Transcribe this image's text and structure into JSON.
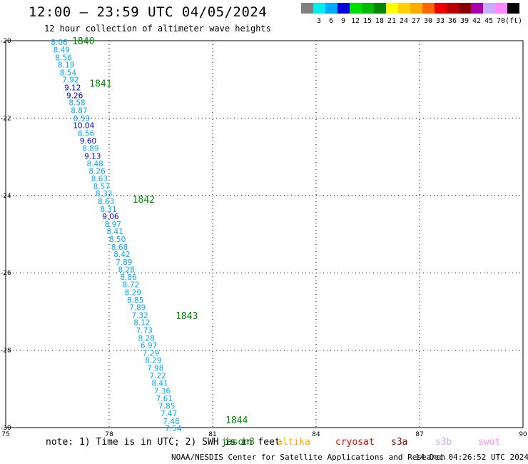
{
  "header": {
    "title": "12:00 – 23:59 UTC 04/05/2024",
    "subtitle": "12 hour collection of altimeter wave heights"
  },
  "legend": {
    "colors": [
      "#808080",
      "#00eeee",
      "#00aaff",
      "#0000dd",
      "#00dd00",
      "#00bb00",
      "#008800",
      "#ffff00",
      "#ffd000",
      "#ffaa00",
      "#ff6600",
      "#ee0000",
      "#bb0000",
      "#880000",
      "#aa00aa",
      "#ccaaff",
      "#ff88ff",
      "#000000"
    ],
    "labels": [
      "3",
      "6",
      "9",
      "12",
      "15",
      "18",
      "21",
      "24",
      "27",
      "30",
      "33",
      "36",
      "39",
      "42",
      "45",
      "70"
    ],
    "unit": "(ft)"
  },
  "chart_data": {
    "type": "scatter",
    "x_axis": {
      "range": [
        75,
        90
      ],
      "ticks": [
        "75",
        "78",
        "81",
        "84",
        "87",
        "90"
      ]
    },
    "y_axis": {
      "range": [
        -30,
        -20
      ],
      "ticks": [
        "-20",
        "-22",
        "-24",
        "-26",
        "-28",
        "-30"
      ]
    },
    "grid": true,
    "observations": [
      {
        "x": 76.55,
        "y": -20.04,
        "v": "8.06"
      },
      {
        "x": 76.62,
        "y": -20.23,
        "v": "8.49"
      },
      {
        "x": 76.68,
        "y": -20.43,
        "v": "8.56"
      },
      {
        "x": 76.75,
        "y": -20.62,
        "v": "8.19"
      },
      {
        "x": 76.81,
        "y": -20.82,
        "v": "8.54"
      },
      {
        "x": 76.88,
        "y": -21.01,
        "v": "7.92"
      },
      {
        "x": 76.94,
        "y": -21.21,
        "v": "9.12"
      },
      {
        "x": 77.0,
        "y": -21.41,
        "v": "9.26"
      },
      {
        "x": 77.07,
        "y": -21.6,
        "v": "8.58"
      },
      {
        "x": 77.13,
        "y": -21.8,
        "v": "8.87"
      },
      {
        "x": 77.2,
        "y": -22.0,
        "v": "8.59"
      },
      {
        "x": 77.26,
        "y": -22.19,
        "v": "10.04"
      },
      {
        "x": 77.33,
        "y": -22.39,
        "v": "8.56"
      },
      {
        "x": 77.39,
        "y": -22.58,
        "v": "9.60"
      },
      {
        "x": 77.46,
        "y": -22.78,
        "v": "8.89"
      },
      {
        "x": 77.52,
        "y": -22.98,
        "v": "9.13"
      },
      {
        "x": 77.59,
        "y": -23.17,
        "v": "8.48"
      },
      {
        "x": 77.65,
        "y": -23.37,
        "v": "8.26"
      },
      {
        "x": 77.72,
        "y": -23.56,
        "v": "8.63"
      },
      {
        "x": 77.78,
        "y": -23.76,
        "v": "8.57"
      },
      {
        "x": 77.85,
        "y": -23.95,
        "v": "8.33"
      },
      {
        "x": 77.91,
        "y": -24.15,
        "v": "8.63"
      },
      {
        "x": 77.98,
        "y": -24.35,
        "v": "8.31"
      },
      {
        "x": 78.04,
        "y": -24.54,
        "v": "9.06"
      },
      {
        "x": 78.11,
        "y": -24.74,
        "v": "8.97"
      },
      {
        "x": 78.17,
        "y": -24.93,
        "v": "8.41"
      },
      {
        "x": 78.24,
        "y": -25.13,
        "v": "8.50"
      },
      {
        "x": 78.3,
        "y": -25.33,
        "v": "8.68"
      },
      {
        "x": 78.37,
        "y": -25.52,
        "v": "8.42"
      },
      {
        "x": 78.43,
        "y": -25.72,
        "v": "7.89"
      },
      {
        "x": 78.5,
        "y": -25.91,
        "v": "8.28"
      },
      {
        "x": 78.56,
        "y": -26.11,
        "v": "8.86"
      },
      {
        "x": 78.63,
        "y": -26.3,
        "v": "8.72"
      },
      {
        "x": 78.69,
        "y": -26.5,
        "v": "8.29"
      },
      {
        "x": 78.76,
        "y": -26.7,
        "v": "8.85"
      },
      {
        "x": 78.82,
        "y": -26.89,
        "v": "7.89"
      },
      {
        "x": 78.89,
        "y": -27.09,
        "v": "7.32"
      },
      {
        "x": 78.95,
        "y": -27.28,
        "v": "8.12"
      },
      {
        "x": 79.02,
        "y": -27.48,
        "v": "7.73"
      },
      {
        "x": 79.08,
        "y": -27.68,
        "v": "8.28"
      },
      {
        "x": 79.15,
        "y": -27.87,
        "v": "6.97"
      },
      {
        "x": 79.21,
        "y": -28.07,
        "v": "7.29"
      },
      {
        "x": 79.28,
        "y": -28.26,
        "v": "8.29"
      },
      {
        "x": 79.34,
        "y": -28.46,
        "v": "7.98"
      },
      {
        "x": 79.41,
        "y": -28.65,
        "v": "7.22"
      },
      {
        "x": 79.47,
        "y": -28.85,
        "v": "8.41"
      },
      {
        "x": 79.54,
        "y": -29.05,
        "v": "7.36"
      },
      {
        "x": 79.6,
        "y": -29.24,
        "v": "7.61"
      },
      {
        "x": 79.67,
        "y": -29.44,
        "v": "7.85"
      },
      {
        "x": 79.73,
        "y": -29.63,
        "v": "7.47"
      },
      {
        "x": 79.8,
        "y": -29.83,
        "v": "7.48"
      },
      {
        "x": 79.86,
        "y": -30.02,
        "v": "7.54"
      }
    ],
    "time_labels": [
      {
        "x": 77.25,
        "y": -20.0,
        "text": "1840"
      },
      {
        "x": 77.75,
        "y": -21.1,
        "text": "1841"
      },
      {
        "x": 79.0,
        "y": -24.1,
        "text": "1842"
      },
      {
        "x": 80.25,
        "y": -27.1,
        "text": "1843"
      },
      {
        "x": 81.7,
        "y": -29.8,
        "text": "1844"
      }
    ]
  },
  "footer": {
    "note": "note: 1) Time is in UTC; 2) SWH is in feet",
    "satellites": [
      {
        "name": "jason3",
        "color": "#008800"
      },
      {
        "name": "altika",
        "color": "#ffaa00"
      },
      {
        "name": "cryosat",
        "color": "#ee0000"
      },
      {
        "name": "s3a",
        "color": "#880000"
      },
      {
        "name": "s3b",
        "color": "#ccaaff"
      },
      {
        "name": "swot",
        "color": "#ff88ff"
      }
    ],
    "credit": "NOAA/NESDIS Center for Satellite Applications and Research",
    "timestamp": "14 Dec 04:26:52 UTC 2024"
  }
}
